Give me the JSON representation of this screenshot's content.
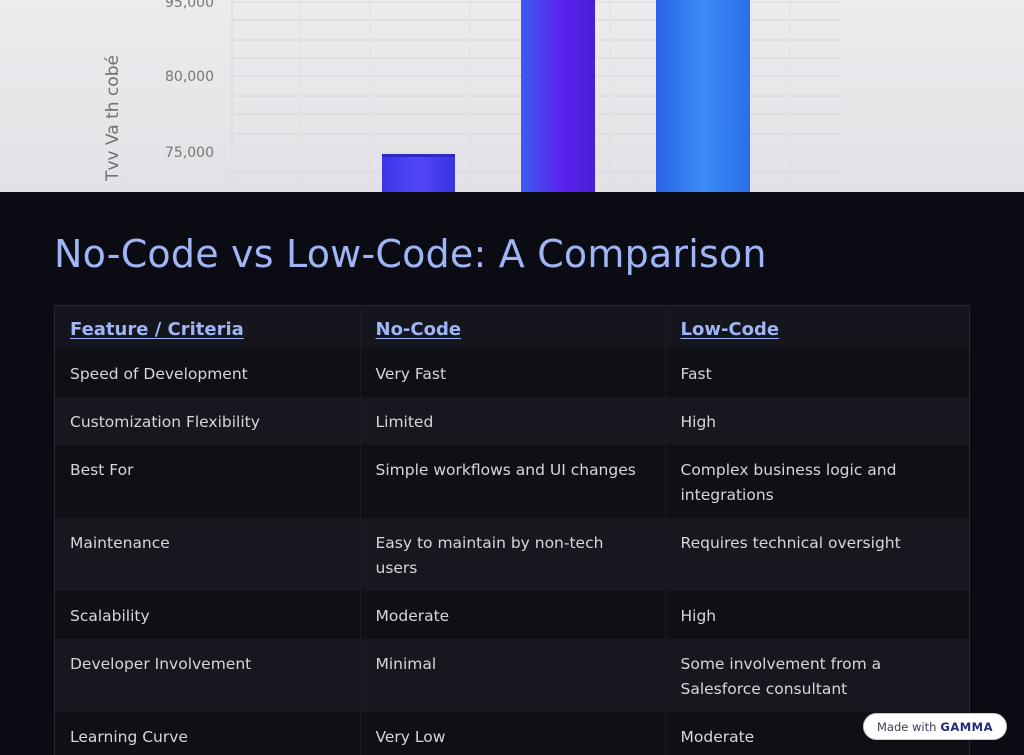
{
  "hero": {
    "y_tick_labels": [
      "95,000",
      "80,000",
      "75,000"
    ],
    "y_axis_label": "Tvv Va th cobé",
    "bar_colors": [
      "#4b3ff0",
      "#5a2cf2",
      "#2f7bf2"
    ]
  },
  "title": "No-Code vs Low-Code: A Comparison",
  "table": {
    "headers": [
      "Feature / Criteria",
      "No-Code",
      "Low-Code"
    ],
    "rows": [
      [
        "Speed of Development",
        "Very Fast",
        "Fast"
      ],
      [
        "Customization Flexibility",
        "Limited",
        "High"
      ],
      [
        "Best For",
        "Simple workflows and UI changes",
        "Complex business logic and integrations"
      ],
      [
        "Maintenance",
        "Easy to maintain by non-tech users",
        "Requires technical oversight"
      ],
      [
        "Scalability",
        "Moderate",
        "High"
      ],
      [
        "Developer Involvement",
        "Minimal",
        "Some involvement from a Salesforce consultant"
      ],
      [
        "Learning Curve",
        "Very Low",
        "Moderate"
      ]
    ]
  },
  "badge": {
    "prefix": "Made with",
    "brand": "GAMMA"
  }
}
